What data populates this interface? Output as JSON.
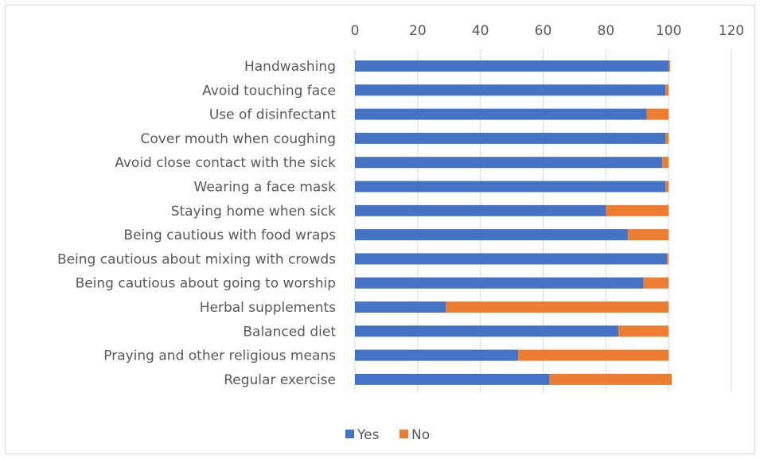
{
  "chart_data": {
    "type": "bar",
    "orientation": "horizontal",
    "stacked": true,
    "title": "",
    "xlabel": "",
    "ylabel": "",
    "xlim": [
      0,
      120
    ],
    "x_ticks": [
      0,
      20,
      40,
      60,
      80,
      100,
      120
    ],
    "x_axis_position": "top",
    "grid": true,
    "legend_position": "bottom",
    "categories": [
      "Handwashing",
      "Avoid touching face",
      "Use of disinfectant",
      "Cover mouth when coughing",
      "Avoid close contact with the sick",
      "Wearing a face mask",
      "Staying home when sick",
      "Being cautious with food wraps",
      "Being cautious about mixing with crowds",
      "Being cautious about going to worship",
      "Herbal supplements",
      "Balanced diet",
      "Praying and other religious means",
      "Regular exercise"
    ],
    "series": [
      {
        "name": "Yes",
        "color": "#4472c4",
        "values": [
          100,
          99,
          93,
          99,
          98,
          99,
          80,
          87,
          99.5,
          92,
          29,
          84,
          52,
          62
        ]
      },
      {
        "name": "No",
        "color": "#ed7d31",
        "values": [
          0.5,
          1,
          7,
          1,
          2,
          1,
          20,
          13,
          0.5,
          8,
          71,
          16,
          48,
          39
        ]
      }
    ]
  }
}
